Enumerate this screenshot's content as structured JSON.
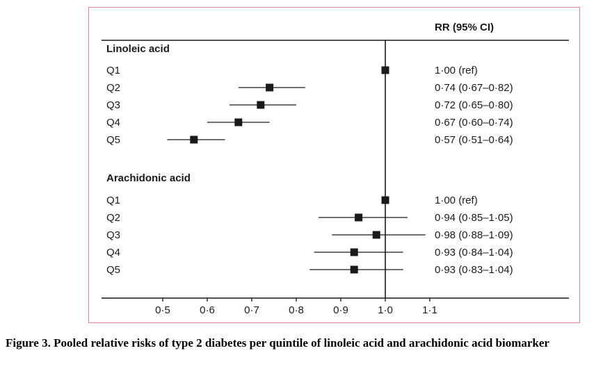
{
  "figure": {
    "caption": "Figure 3. Pooled relative risks of type 2 diabetes per quintile of linoleic acid and arachidonic acid biomarker"
  },
  "chart_data": {
    "type": "forest",
    "title": "Pooled relative risks of type 2 diabetes per quintile of linoleic acid and arachidonic acid biomarker",
    "header": "RR (95% CI)",
    "xlabel": "",
    "ylabel": "",
    "xlim": [
      0.45,
      1.15
    ],
    "ref_line": 1.0,
    "grid": false,
    "legend_position": "none",
    "x_ticks": [
      0.5,
      0.6,
      0.7,
      0.8,
      0.9,
      1.0,
      1.1
    ],
    "x_tick_labels": [
      "0·5",
      "0·6",
      "0·7",
      "0·8",
      "0·9",
      "1·0",
      "1·1"
    ],
    "groups": [
      {
        "title": "Linoleic acid",
        "rows": [
          {
            "label": "Q1",
            "rr": 1.0,
            "lo": null,
            "hi": null,
            "text": "1·00 (ref)"
          },
          {
            "label": "Q2",
            "rr": 0.74,
            "lo": 0.67,
            "hi": 0.82,
            "text": "0·74 (0·67–0·82)"
          },
          {
            "label": "Q3",
            "rr": 0.72,
            "lo": 0.65,
            "hi": 0.8,
            "text": "0·72 (0·65–0·80)"
          },
          {
            "label": "Q4",
            "rr": 0.67,
            "lo": 0.6,
            "hi": 0.74,
            "text": "0·67 (0·60–0·74)"
          },
          {
            "label": "Q5",
            "rr": 0.57,
            "lo": 0.51,
            "hi": 0.64,
            "text": "0·57 (0·51–0·64)"
          }
        ]
      },
      {
        "title": "Arachidonic acid",
        "rows": [
          {
            "label": "Q1",
            "rr": 1.0,
            "lo": null,
            "hi": null,
            "text": "1·00 (ref)"
          },
          {
            "label": "Q2",
            "rr": 0.94,
            "lo": 0.85,
            "hi": 1.05,
            "text": "0·94 (0·85–1·05)"
          },
          {
            "label": "Q3",
            "rr": 0.98,
            "lo": 0.88,
            "hi": 1.09,
            "text": "0·98 (0·88–1·09)"
          },
          {
            "label": "Q4",
            "rr": 0.93,
            "lo": 0.84,
            "hi": 1.04,
            "text": "0·93 (0·84–1·04)"
          },
          {
            "label": "Q5",
            "rr": 0.93,
            "lo": 0.83,
            "hi": 1.04,
            "text": "0·93 (0·83–1·04)"
          }
        ]
      }
    ],
    "colors": {
      "ink": "#1a1a1a",
      "marker": "#1a1a1a",
      "border": "#e87f9b"
    }
  }
}
